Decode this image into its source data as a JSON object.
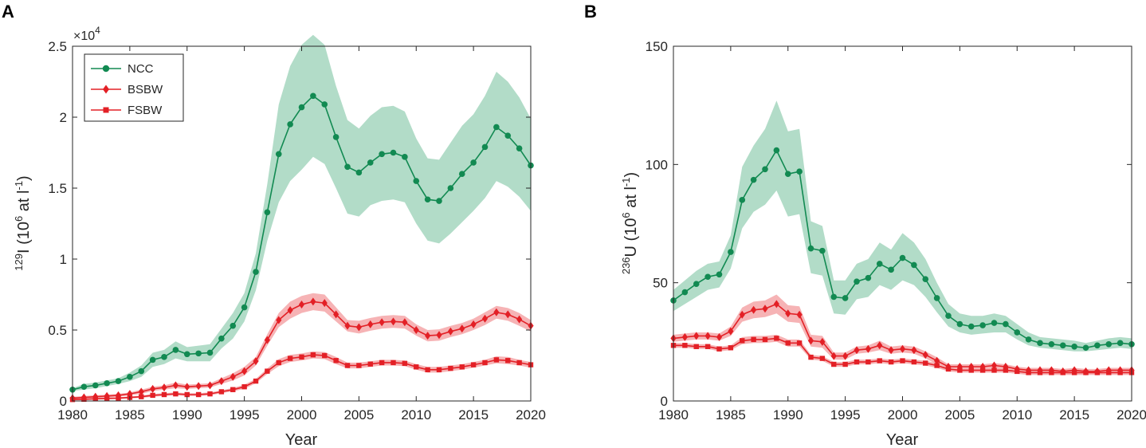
{
  "colors": {
    "ncc": "#128a52",
    "ncc_band": "#b2dcc8",
    "red": "#e32026",
    "red_band": "#f6b3b5",
    "axis": "#262626"
  },
  "panel_labels": [
    "A",
    "B"
  ],
  "chart_data": [
    {
      "type": "line",
      "panel": "A",
      "xlabel": "Year",
      "ylabel": {
        "sup": "129",
        "main": "I (10",
        "sup2": "6",
        "rest": " at l",
        "sup3": "-1",
        "close": ")"
      },
      "xlim": [
        1980,
        2020
      ],
      "ylim": [
        0,
        2.5
      ],
      "exponent_label": {
        "base": "×10",
        "power": "4"
      },
      "x_ticks": [
        1980,
        1985,
        1990,
        1995,
        2000,
        2005,
        2010,
        2015,
        2020
      ],
      "x_tick_labels": [
        "1980",
        "1985",
        "1990",
        "1995",
        "2000",
        "2005",
        "2010",
        "2015",
        "2020"
      ],
      "y_ticks": [
        0,
        0.5,
        1,
        1.5,
        2,
        2.5
      ],
      "y_tick_labels": [
        "0",
        "0.5",
        "1",
        "1.5",
        "2",
        "2.5"
      ],
      "legend": {
        "position": "top-left",
        "entries": [
          "NCC",
          "BSBW",
          "FSBW"
        ]
      },
      "x": [
        1980,
        1981,
        1982,
        1983,
        1984,
        1985,
        1986,
        1987,
        1988,
        1989,
        1990,
        1991,
        1992,
        1993,
        1994,
        1995,
        1996,
        1997,
        1998,
        1999,
        2000,
        2001,
        2002,
        2003,
        2004,
        2005,
        2006,
        2007,
        2008,
        2009,
        2010,
        2011,
        2012,
        2013,
        2014,
        2015,
        2016,
        2017,
        2018,
        2019,
        2020
      ],
      "series": [
        {
          "name": "NCC",
          "marker": "circle",
          "color_key": "ncc",
          "band_key": "ncc_band",
          "values": [
            0.08,
            0.1,
            0.11,
            0.125,
            0.14,
            0.17,
            0.21,
            0.29,
            0.31,
            0.36,
            0.33,
            0.335,
            0.34,
            0.44,
            0.53,
            0.66,
            0.91,
            1.33,
            1.74,
            1.95,
            2.07,
            2.15,
            2.09,
            1.86,
            1.65,
            1.61,
            1.68,
            1.74,
            1.75,
            1.72,
            1.55,
            1.42,
            1.41,
            1.5,
            1.6,
            1.68,
            1.79,
            1.93,
            1.87,
            1.78,
            1.66
          ],
          "lower": [
            0.07,
            0.08,
            0.09,
            0.105,
            0.12,
            0.14,
            0.17,
            0.24,
            0.26,
            0.3,
            0.28,
            0.28,
            0.28,
            0.37,
            0.44,
            0.56,
            0.78,
            1.13,
            1.4,
            1.55,
            1.63,
            1.72,
            1.67,
            1.5,
            1.32,
            1.3,
            1.38,
            1.41,
            1.42,
            1.4,
            1.25,
            1.13,
            1.11,
            1.18,
            1.26,
            1.34,
            1.43,
            1.55,
            1.51,
            1.44,
            1.34
          ],
          "upper": [
            0.09,
            0.12,
            0.13,
            0.145,
            0.16,
            0.2,
            0.25,
            0.34,
            0.36,
            0.42,
            0.38,
            0.39,
            0.4,
            0.51,
            0.62,
            0.76,
            1.04,
            1.53,
            2.09,
            2.36,
            2.51,
            2.58,
            2.51,
            2.22,
            1.98,
            1.92,
            2.01,
            2.07,
            2.08,
            2.04,
            1.85,
            1.71,
            1.7,
            1.82,
            1.94,
            2.02,
            2.15,
            2.32,
            2.25,
            2.14,
            1.99
          ]
        },
        {
          "name": "BSBW",
          "marker": "diamond",
          "color_key": "red",
          "band_key": "red_band",
          "values": [
            0.02,
            0.025,
            0.03,
            0.035,
            0.04,
            0.05,
            0.065,
            0.085,
            0.095,
            0.11,
            0.1,
            0.105,
            0.11,
            0.14,
            0.17,
            0.21,
            0.28,
            0.43,
            0.57,
            0.64,
            0.68,
            0.7,
            0.69,
            0.61,
            0.53,
            0.52,
            0.54,
            0.555,
            0.56,
            0.555,
            0.5,
            0.46,
            0.465,
            0.49,
            0.51,
            0.54,
            0.58,
            0.625,
            0.61,
            0.575,
            0.53
          ],
          "lower": [
            0.01,
            0.015,
            0.02,
            0.025,
            0.03,
            0.04,
            0.05,
            0.07,
            0.08,
            0.09,
            0.085,
            0.09,
            0.095,
            0.12,
            0.145,
            0.18,
            0.25,
            0.39,
            0.52,
            0.58,
            0.62,
            0.64,
            0.63,
            0.56,
            0.49,
            0.475,
            0.495,
            0.51,
            0.515,
            0.51,
            0.46,
            0.42,
            0.425,
            0.45,
            0.47,
            0.5,
            0.535,
            0.58,
            0.565,
            0.53,
            0.49
          ],
          "upper": [
            0.03,
            0.035,
            0.04,
            0.045,
            0.05,
            0.06,
            0.08,
            0.1,
            0.11,
            0.13,
            0.115,
            0.12,
            0.125,
            0.16,
            0.195,
            0.24,
            0.31,
            0.47,
            0.62,
            0.7,
            0.74,
            0.76,
            0.75,
            0.66,
            0.57,
            0.565,
            0.585,
            0.6,
            0.605,
            0.6,
            0.54,
            0.5,
            0.505,
            0.53,
            0.55,
            0.58,
            0.625,
            0.67,
            0.655,
            0.62,
            0.57
          ]
        },
        {
          "name": "FSBW",
          "marker": "square",
          "color_key": "red",
          "band_key": "red_band",
          "values": [
            0.01,
            0.012,
            0.015,
            0.018,
            0.02,
            0.025,
            0.03,
            0.04,
            0.045,
            0.05,
            0.045,
            0.045,
            0.05,
            0.065,
            0.08,
            0.1,
            0.14,
            0.21,
            0.27,
            0.3,
            0.31,
            0.325,
            0.32,
            0.285,
            0.25,
            0.25,
            0.26,
            0.27,
            0.27,
            0.265,
            0.24,
            0.22,
            0.22,
            0.23,
            0.24,
            0.255,
            0.27,
            0.29,
            0.285,
            0.27,
            0.255
          ],
          "lower": [
            0.005,
            0.007,
            0.01,
            0.012,
            0.014,
            0.018,
            0.022,
            0.03,
            0.035,
            0.04,
            0.035,
            0.035,
            0.04,
            0.055,
            0.068,
            0.085,
            0.125,
            0.19,
            0.245,
            0.275,
            0.285,
            0.3,
            0.295,
            0.26,
            0.23,
            0.23,
            0.24,
            0.25,
            0.25,
            0.245,
            0.22,
            0.2,
            0.2,
            0.21,
            0.22,
            0.235,
            0.25,
            0.265,
            0.26,
            0.25,
            0.235
          ],
          "upper": [
            0.015,
            0.017,
            0.02,
            0.024,
            0.026,
            0.032,
            0.038,
            0.05,
            0.055,
            0.06,
            0.055,
            0.055,
            0.06,
            0.075,
            0.092,
            0.115,
            0.155,
            0.23,
            0.295,
            0.325,
            0.335,
            0.35,
            0.345,
            0.31,
            0.27,
            0.27,
            0.28,
            0.29,
            0.29,
            0.285,
            0.26,
            0.24,
            0.24,
            0.25,
            0.26,
            0.275,
            0.29,
            0.315,
            0.31,
            0.29,
            0.275
          ]
        }
      ]
    },
    {
      "type": "line",
      "panel": "B",
      "xlabel": "Year",
      "ylabel": {
        "sup": "236",
        "main": "U (10",
        "sup2": "6",
        "rest": " at l",
        "sup3": "-1",
        "close": ")"
      },
      "xlim": [
        1980,
        2020
      ],
      "ylim": [
        0,
        150
      ],
      "x_ticks": [
        1980,
        1985,
        1990,
        1995,
        2000,
        2005,
        2010,
        2015,
        2020
      ],
      "x_tick_labels": [
        "1980",
        "1985",
        "1990",
        "1995",
        "2000",
        "2005",
        "2010",
        "2015",
        "2020"
      ],
      "y_ticks": [
        0,
        50,
        100,
        150
      ],
      "y_tick_labels": [
        "0",
        "50",
        "100",
        "150"
      ],
      "x": [
        1980,
        1981,
        1982,
        1983,
        1984,
        1985,
        1986,
        1987,
        1988,
        1989,
        1990,
        1991,
        1992,
        1993,
        1994,
        1995,
        1996,
        1997,
        1998,
        1999,
        2000,
        2001,
        2002,
        2003,
        2004,
        2005,
        2006,
        2007,
        2008,
        2009,
        2010,
        2011,
        2012,
        2013,
        2014,
        2015,
        2016,
        2017,
        2018,
        2019,
        2020
      ],
      "series": [
        {
          "name": "NCC",
          "marker": "circle",
          "color_key": "ncc",
          "band_key": "ncc_band",
          "values": [
            42.5,
            46,
            49.5,
            52.5,
            53.5,
            63,
            85,
            93.5,
            98,
            106,
            96,
            97,
            64.5,
            63.5,
            44,
            43.5,
            50.5,
            52,
            58,
            55.5,
            60.5,
            57.5,
            51.5,
            43.5,
            36,
            32.5,
            31.5,
            32,
            33,
            32.5,
            29,
            26,
            24.5,
            24,
            23.5,
            23,
            22.5,
            23.5,
            24,
            24.5,
            24
          ],
          "lower": [
            38,
            41,
            44,
            47,
            48,
            56,
            73,
            80,
            83,
            89,
            78,
            79,
            54,
            53,
            37,
            36.5,
            43,
            44,
            49,
            47,
            51,
            49,
            44,
            37.5,
            31.5,
            29,
            28,
            28.5,
            29,
            29,
            26,
            23.5,
            22.5,
            22,
            21.5,
            21,
            21,
            21.5,
            22,
            22.5,
            22
          ],
          "upper": [
            47,
            51,
            55,
            58,
            59,
            70,
            99,
            108,
            115,
            127,
            114,
            115,
            76,
            74,
            51,
            51,
            58,
            60,
            67,
            64,
            71,
            67,
            60,
            50,
            41,
            37,
            36,
            36,
            37,
            36,
            32.5,
            29,
            27,
            26.5,
            26,
            25.5,
            24.5,
            25.5,
            26.5,
            27,
            26.5
          ]
        },
        {
          "name": "BSBW",
          "marker": "diamond",
          "color_key": "red",
          "band_key": "red_band",
          "values": [
            26.5,
            27,
            27.5,
            27.5,
            27,
            29.5,
            36.5,
            38.5,
            39,
            41,
            37,
            36.5,
            25.5,
            25,
            19,
            19,
            21.5,
            22,
            23.5,
            21.5,
            22,
            21.5,
            19.5,
            17,
            14.5,
            14.5,
            14.5,
            14.5,
            15,
            14.5,
            13.5,
            13,
            13,
            13,
            12.5,
            13,
            12.5,
            12.5,
            13,
            13,
            13
          ],
          "lower": [
            25,
            25.5,
            26,
            26,
            25.5,
            27.5,
            33.5,
            35,
            35.5,
            37,
            33.5,
            33,
            23,
            22.5,
            17.5,
            17.5,
            20,
            20.5,
            21.5,
            20,
            20.5,
            20,
            18,
            15.5,
            13.5,
            13.5,
            13.5,
            13.5,
            14,
            13.5,
            12.5,
            12,
            12,
            12,
            11.5,
            12,
            11.5,
            11.5,
            12,
            12,
            12
          ],
          "upper": [
            28,
            28.5,
            29,
            29,
            28.5,
            31.5,
            39.5,
            42,
            42.5,
            45,
            40.5,
            40,
            28,
            27.5,
            20.5,
            20.5,
            23,
            23.5,
            25.5,
            23,
            23.5,
            23,
            21,
            18.5,
            15.5,
            15.5,
            15.5,
            15.5,
            16,
            15.5,
            14.5,
            14,
            14,
            14,
            13.5,
            14,
            13.5,
            13.5,
            14,
            14,
            14
          ]
        },
        {
          "name": "FSBW",
          "marker": "square",
          "color_key": "red",
          "band_key": "red_band",
          "values": [
            23.5,
            23.5,
            23,
            23,
            22,
            22.5,
            25.5,
            26,
            26,
            26.5,
            24.5,
            24.5,
            18.5,
            18,
            15.5,
            15.5,
            16.5,
            16.5,
            17,
            16.5,
            17,
            16.5,
            16,
            15,
            13.5,
            13,
            13,
            13,
            13,
            13,
            12.5,
            12,
            12,
            12,
            12,
            12,
            12,
            12,
            12,
            12,
            12
          ],
          "lower": [
            22.5,
            22.5,
            22,
            22,
            21,
            21.5,
            24,
            24.5,
            24.5,
            25,
            23,
            23,
            17.5,
            17,
            14.5,
            14.5,
            15.5,
            15.5,
            16,
            15.5,
            16,
            15.5,
            15,
            14,
            12.5,
            12,
            12,
            12,
            12,
            12,
            11.5,
            11,
            11,
            11,
            11,
            11,
            11,
            11,
            11,
            11,
            11
          ],
          "upper": [
            24.5,
            24.5,
            24,
            24,
            23,
            23.5,
            27,
            27.5,
            27.5,
            28,
            26,
            26,
            19.5,
            19,
            16.5,
            16.5,
            17.5,
            17.5,
            18,
            17.5,
            18,
            17.5,
            17,
            16,
            14.5,
            14,
            14,
            14,
            14,
            14,
            13.5,
            13,
            13,
            13,
            13,
            13,
            13,
            13,
            13,
            13,
            13
          ]
        }
      ]
    }
  ]
}
